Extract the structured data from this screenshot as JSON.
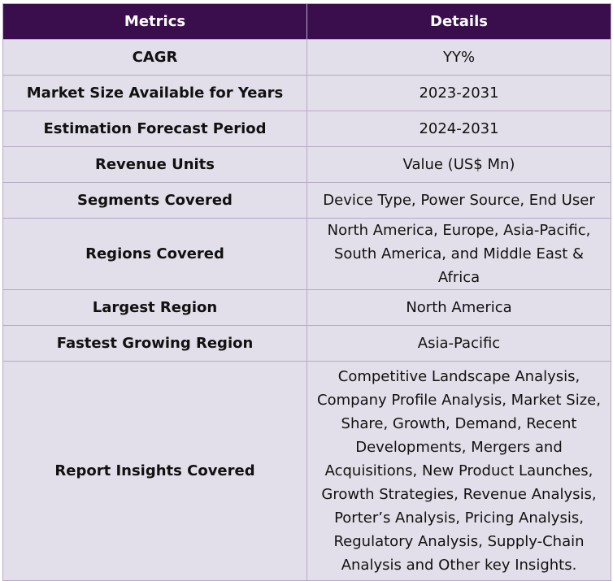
{
  "table": {
    "headers": [
      "Metrics",
      "Details"
    ],
    "rows": [
      {
        "metric": "CAGR",
        "details": "YY%"
      },
      {
        "metric": "Market Size Available for Years",
        "details": "2023-2031"
      },
      {
        "metric": "Estimation Forecast Period",
        "details": "2024-2031"
      },
      {
        "metric": "Revenue Units",
        "details": "Value (US$ Mn)"
      },
      {
        "metric": "Segments Covered",
        "details": "Device Type, Power Source, End User"
      },
      {
        "metric": "Regions Covered",
        "details": "North America, Europe, Asia-Pacific, South America, and Middle East & Africa"
      },
      {
        "metric": "Largest Region",
        "details": "North America"
      },
      {
        "metric": "Fastest Growing Region",
        "details": "Asia-Pacific"
      },
      {
        "metric": "Report Insights Covered",
        "details": "Competitive Landscape Analysis, Company Profile Analysis, Market Size, Share, Growth, Demand, Recent Developments, Mergers and Acquisitions, New Product Launches, Growth Strategies, Revenue Analysis, Porter’s Analysis, Pricing Analysis, Regulatory Analysis, Supply-Chain Analysis and Other key Insights."
      }
    ]
  },
  "colors": {
    "header_bg": "#3a0e4d",
    "cell_bg": "#e3dfea",
    "border": "#b7a9c4"
  }
}
